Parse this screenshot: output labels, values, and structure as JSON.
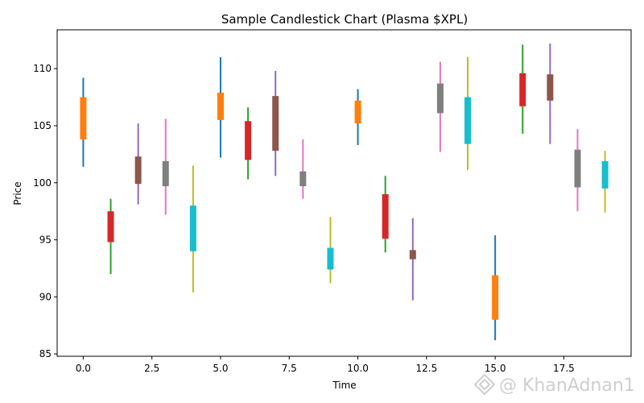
{
  "chart_data": {
    "type": "candlestick",
    "title": "Sample Candlestick Chart (Plasma $XPL)",
    "xlabel": "Time",
    "ylabel": "Price",
    "xlim": [
      -0.95,
      19.95
    ],
    "ylim": [
      84.8,
      113.4
    ],
    "xticks": [
      0,
      2.5,
      5,
      7.5,
      10,
      12.5,
      15,
      17.5
    ],
    "xtick_labels": [
      "0.0",
      "2.5",
      "5.0",
      "7.5",
      "10.0",
      "12.5",
      "15.0",
      "17.5"
    ],
    "yticks": [
      85,
      90,
      95,
      100,
      105,
      110
    ],
    "ytick_labels": [
      "85",
      "90",
      "95",
      "100",
      "105",
      "110"
    ],
    "grid": false,
    "candles": [
      {
        "x": 0,
        "low": 101.4,
        "high": 109.2,
        "body_low": 103.8,
        "body_high": 107.5,
        "wick_color": "#1f77b4",
        "body_color": "#ff7f0e"
      },
      {
        "x": 1,
        "low": 92.0,
        "high": 98.6,
        "body_low": 94.8,
        "body_high": 97.5,
        "wick_color": "#2ca02c",
        "body_color": "#d62728"
      },
      {
        "x": 2,
        "low": 98.1,
        "high": 105.2,
        "body_low": 99.9,
        "body_high": 102.3,
        "wick_color": "#9467bd",
        "body_color": "#8c564b"
      },
      {
        "x": 3,
        "low": 97.2,
        "high": 105.6,
        "body_low": 99.7,
        "body_high": 101.9,
        "wick_color": "#e377c2",
        "body_color": "#7f7f7f"
      },
      {
        "x": 4,
        "low": 90.4,
        "high": 101.5,
        "body_low": 94.0,
        "body_high": 98.0,
        "wick_color": "#bcbd22",
        "body_color": "#17becf"
      },
      {
        "x": 5,
        "low": 102.2,
        "high": 111.0,
        "body_low": 105.5,
        "body_high": 107.9,
        "wick_color": "#1f77b4",
        "body_color": "#ff7f0e"
      },
      {
        "x": 6,
        "low": 100.3,
        "high": 106.6,
        "body_low": 102.0,
        "body_high": 105.4,
        "wick_color": "#2ca02c",
        "body_color": "#d62728"
      },
      {
        "x": 7,
        "low": 100.6,
        "high": 109.8,
        "body_low": 102.8,
        "body_high": 107.6,
        "wick_color": "#9467bd",
        "body_color": "#8c564b"
      },
      {
        "x": 8,
        "low": 98.6,
        "high": 103.8,
        "body_low": 99.7,
        "body_high": 101.0,
        "wick_color": "#e377c2",
        "body_color": "#7f7f7f"
      },
      {
        "x": 9,
        "low": 91.2,
        "high": 97.0,
        "body_low": 92.4,
        "body_high": 94.3,
        "wick_color": "#bcbd22",
        "body_color": "#17becf"
      },
      {
        "x": 10,
        "low": 103.3,
        "high": 108.2,
        "body_low": 105.2,
        "body_high": 107.2,
        "wick_color": "#1f77b4",
        "body_color": "#ff7f0e"
      },
      {
        "x": 11,
        "low": 93.9,
        "high": 100.6,
        "body_low": 95.1,
        "body_high": 99.0,
        "wick_color": "#2ca02c",
        "body_color": "#d62728"
      },
      {
        "x": 12,
        "low": 89.7,
        "high": 96.9,
        "body_low": 93.3,
        "body_high": 94.1,
        "wick_color": "#9467bd",
        "body_color": "#8c564b"
      },
      {
        "x": 13,
        "low": 102.7,
        "high": 110.6,
        "body_low": 106.1,
        "body_high": 108.7,
        "wick_color": "#e377c2",
        "body_color": "#7f7f7f"
      },
      {
        "x": 14,
        "low": 101.1,
        "high": 111.0,
        "body_low": 103.4,
        "body_high": 107.5,
        "wick_color": "#bcbd22",
        "body_color": "#17becf"
      },
      {
        "x": 15,
        "low": 86.2,
        "high": 95.4,
        "body_low": 88.0,
        "body_high": 91.9,
        "wick_color": "#1f77b4",
        "body_color": "#ff7f0e"
      },
      {
        "x": 16,
        "low": 104.3,
        "high": 112.1,
        "body_low": 106.7,
        "body_high": 109.6,
        "wick_color": "#2ca02c",
        "body_color": "#d62728"
      },
      {
        "x": 17,
        "low": 103.4,
        "high": 112.2,
        "body_low": 107.2,
        "body_high": 109.5,
        "wick_color": "#9467bd",
        "body_color": "#8c564b"
      },
      {
        "x": 18,
        "low": 97.5,
        "high": 104.7,
        "body_low": 99.6,
        "body_high": 102.9,
        "wick_color": "#e377c2",
        "body_color": "#7f7f7f"
      },
      {
        "x": 19,
        "low": 97.4,
        "high": 102.8,
        "body_low": 99.5,
        "body_high": 101.9,
        "wick_color": "#bcbd22",
        "body_color": "#17becf"
      }
    ]
  },
  "watermark": {
    "text": "@ KhanAdnan1",
    "icon": "exchange-diamond-logo"
  }
}
